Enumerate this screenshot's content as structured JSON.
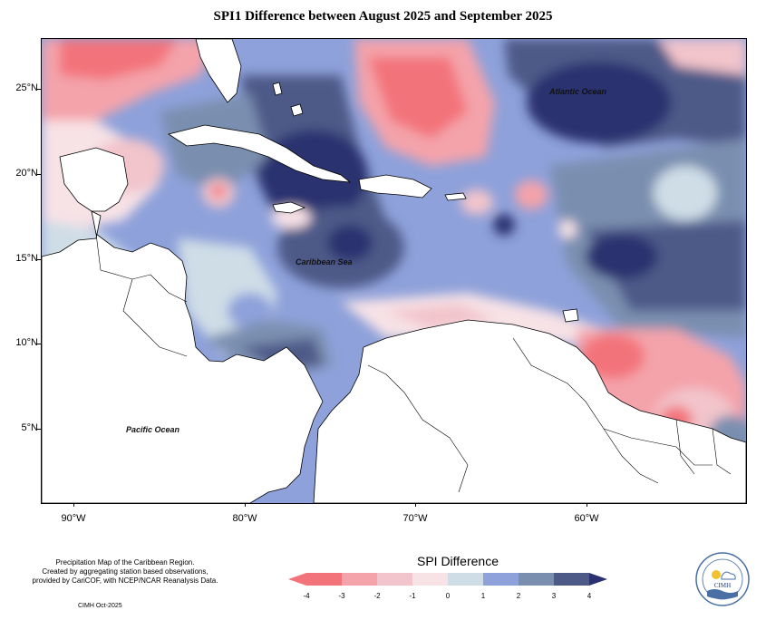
{
  "title": "SPI1 Difference between August 2025 and September 2025",
  "latitude_ticks": [
    "25°N",
    "20°N",
    "15°N",
    "10°N",
    "5°N"
  ],
  "longitude_ticks": [
    "90°W",
    "80°W",
    "70°W",
    "60°W"
  ],
  "map_labels": {
    "atlantic": "Atlantic Ocean",
    "caribbean": "Caribbean Sea",
    "pacific": "Pacific Ocean"
  },
  "footnote": {
    "line1": "Precipitation Map of the Caribbean Region.",
    "line2": "Created by aggregating station based observations,",
    "line3": "provided by CariCOF, with NCEP/NCAR Reanalysis Data."
  },
  "credit": "CIMH Oct-2025",
  "legend": {
    "title": "SPI Difference",
    "labels": [
      "-4",
      "-3",
      "-2",
      "-1",
      "0",
      "1",
      "2",
      "3",
      "4"
    ],
    "colors": [
      "#f3737a",
      "#f4a3aa",
      "#f2c4cb",
      "#f7e2e6",
      "#cfdde7",
      "#8ea1da",
      "#7a8fb0",
      "#4d5a88",
      "#2b3170"
    ]
  },
  "logo": {
    "name": "CIMH"
  }
}
